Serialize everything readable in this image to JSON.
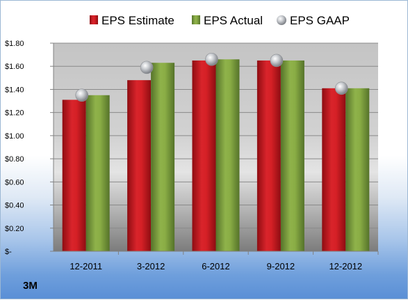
{
  "company": "3M",
  "colors": {
    "estimate": "#c0161c",
    "actual": "#7a9c35",
    "gaap": "#b9bcc0"
  },
  "chart_data": {
    "type": "bar",
    "categories": [
      "12-2011",
      "3-2012",
      "6-2012",
      "9-2012",
      "12-2012"
    ],
    "series": [
      {
        "name": "EPS Estimate",
        "kind": "bar",
        "values": [
          1.31,
          1.48,
          1.65,
          1.65,
          1.41
        ]
      },
      {
        "name": "EPS Actual",
        "kind": "bar",
        "values": [
          1.35,
          1.63,
          1.66,
          1.65,
          1.41
        ]
      },
      {
        "name": "EPS GAAP",
        "kind": "marker",
        "values": [
          1.35,
          1.59,
          1.66,
          1.65,
          1.41
        ]
      }
    ],
    "y_ticks": [
      0,
      0.2,
      0.4,
      0.6,
      0.8,
      1.0,
      1.2,
      1.4,
      1.6,
      1.8
    ],
    "y_tick_labels": [
      "$-",
      "$0.20",
      "$0.40",
      "$0.60",
      "$0.80",
      "$1.00",
      "$1.20",
      "$1.40",
      "$1.60",
      "$1.80"
    ],
    "ylim": [
      0,
      1.8
    ],
    "grid": true,
    "legend_position": "top"
  }
}
